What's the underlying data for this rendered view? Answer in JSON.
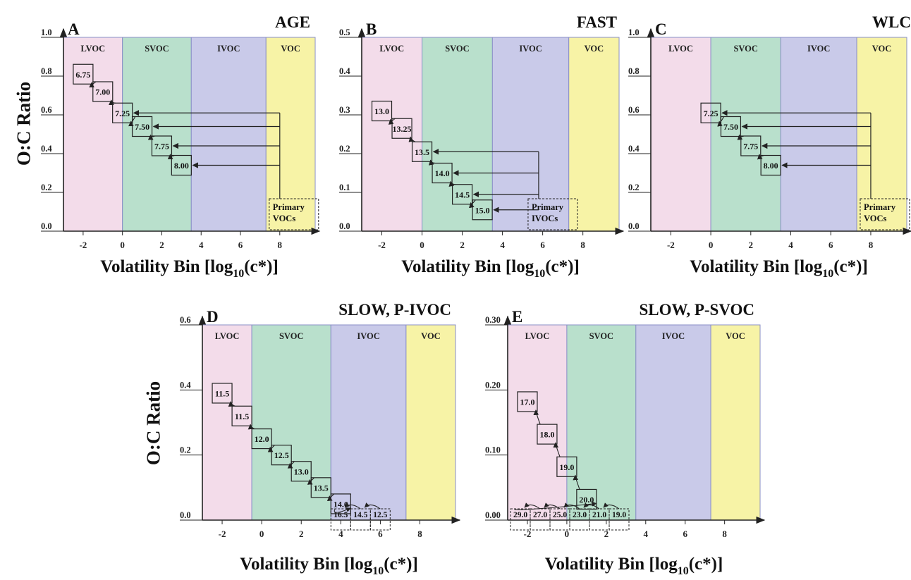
{
  "figure": {
    "y_axis_label": "O:C Ratio",
    "x_axis_label": "Volatility Bin [log10(c*)]",
    "x_axis_label_main": "Volatility Bin [log",
    "x_axis_label_sub": "10",
    "x_axis_label_tail": "(c*)]"
  },
  "chart_data": [
    {
      "type": "scatter",
      "panel": "A",
      "title": "AGE",
      "xlim": [
        -3,
        9.8
      ],
      "ylim": [
        0,
        1.0
      ],
      "xticks": [
        -2,
        0,
        2,
        4,
        6,
        8
      ],
      "yticks": [
        {
          "v": 0.0,
          "t": "0.0"
        },
        {
          "v": 0.2,
          "t": "0.2"
        },
        {
          "v": 0.4,
          "t": "0.4"
        },
        {
          "v": 0.6,
          "t": "0.6"
        },
        {
          "v": 0.8,
          "t": "0.8"
        },
        {
          "v": 1.0,
          "t": "1.0"
        }
      ],
      "regions": [
        {
          "name": "LVOC",
          "from": -3,
          "to": 0,
          "color": "#f3dcea"
        },
        {
          "name": "SVOC",
          "from": 0,
          "to": 3.5,
          "color": "#b9e0cc"
        },
        {
          "name": "IVOC",
          "from": 3.5,
          "to": 7.3,
          "color": "#c9cae9"
        },
        {
          "name": "VOC",
          "from": 7.3,
          "to": 9.8,
          "color": "#f7f3a6"
        }
      ],
      "points": [
        {
          "x": -2.0,
          "y": 0.81,
          "label": "6.75"
        },
        {
          "x": -1.0,
          "y": 0.72,
          "label": "7.00"
        },
        {
          "x": 0.0,
          "y": 0.61,
          "label": "7.25"
        },
        {
          "x": 1.0,
          "y": 0.54,
          "label": "7.50"
        },
        {
          "x": 2.0,
          "y": 0.44,
          "label": "7.75"
        },
        {
          "x": 3.0,
          "y": 0.34,
          "label": "8.00"
        }
      ],
      "source": {
        "x": 8.0,
        "y": 0.075,
        "lines": [
          "Primary",
          "VOCs"
        ]
      },
      "arrow_targets": [
        "7.25",
        "7.50",
        "7.75",
        "8.00"
      ]
    },
    {
      "type": "scatter",
      "panel": "B",
      "title": "FAST",
      "xlim": [
        -3,
        9.8
      ],
      "ylim": [
        0,
        0.5
      ],
      "xticks": [
        -2,
        0,
        2,
        4,
        6,
        8
      ],
      "yticks": [
        {
          "v": 0.0,
          "t": "0.0"
        },
        {
          "v": 0.1,
          "t": "0.1"
        },
        {
          "v": 0.2,
          "t": "0.2"
        },
        {
          "v": 0.3,
          "t": "0.3"
        },
        {
          "v": 0.4,
          "t": "0.4"
        },
        {
          "v": 0.5,
          "t": "0.5"
        }
      ],
      "regions": [
        {
          "name": "LVOC",
          "from": -3,
          "to": 0,
          "color": "#f3dcea"
        },
        {
          "name": "SVOC",
          "from": 0,
          "to": 3.5,
          "color": "#b9e0cc"
        },
        {
          "name": "IVOC",
          "from": 3.5,
          "to": 7.3,
          "color": "#c9cae9"
        },
        {
          "name": "VOC",
          "from": 7.3,
          "to": 9.8,
          "color": "#f7f3a6"
        }
      ],
      "points": [
        {
          "x": -2.0,
          "y": 0.31,
          "label": "13.0"
        },
        {
          "x": -1.0,
          "y": 0.265,
          "label": "13.25"
        },
        {
          "x": 0.0,
          "y": 0.205,
          "label": "13.5"
        },
        {
          "x": 1.0,
          "y": 0.15,
          "label": "14.0"
        },
        {
          "x": 2.0,
          "y": 0.095,
          "label": "14.5"
        },
        {
          "x": 3.0,
          "y": 0.055,
          "label": "15.0"
        }
      ],
      "source": {
        "x": 5.8,
        "y": 0.04,
        "lines": [
          "Primary",
          "IVOCs"
        ]
      },
      "arrow_targets": [
        "13.5",
        "14.0",
        "14.5",
        "15.0"
      ]
    },
    {
      "type": "scatter",
      "panel": "C",
      "title": "WLC",
      "xlim": [
        -3,
        9.8
      ],
      "ylim": [
        0,
        1.0
      ],
      "xticks": [
        -2,
        0,
        2,
        4,
        6,
        8
      ],
      "yticks": [
        {
          "v": 0.0,
          "t": "0.0"
        },
        {
          "v": 0.2,
          "t": "0.2"
        },
        {
          "v": 0.4,
          "t": "0.4"
        },
        {
          "v": 0.6,
          "t": "0.6"
        },
        {
          "v": 0.8,
          "t": "0.8"
        },
        {
          "v": 1.0,
          "t": "1.0"
        }
      ],
      "regions": [
        {
          "name": "LVOC",
          "from": -3,
          "to": 0,
          "color": "#f3dcea"
        },
        {
          "name": "SVOC",
          "from": 0,
          "to": 3.5,
          "color": "#b9e0cc"
        },
        {
          "name": "IVOC",
          "from": 3.5,
          "to": 7.3,
          "color": "#c9cae9"
        },
        {
          "name": "VOC",
          "from": 7.3,
          "to": 9.8,
          "color": "#f7f3a6"
        }
      ],
      "points": [
        {
          "x": 0.0,
          "y": 0.61,
          "label": "7.25"
        },
        {
          "x": 1.0,
          "y": 0.54,
          "label": "7.50"
        },
        {
          "x": 2.0,
          "y": 0.44,
          "label": "7.75"
        },
        {
          "x": 3.0,
          "y": 0.34,
          "label": "8.00"
        }
      ],
      "source": {
        "x": 8.0,
        "y": 0.075,
        "lines": [
          "Primary",
          "VOCs"
        ]
      },
      "arrow_targets": [
        "7.25",
        "7.50",
        "7.75",
        "8.00"
      ]
    },
    {
      "type": "scatter",
      "panel": "D",
      "title": "SLOW, P-IVOC",
      "xlim": [
        -3,
        9.8
      ],
      "ylim": [
        0,
        0.6
      ],
      "xticks": [
        -2,
        0,
        2,
        4,
        6,
        8
      ],
      "yticks": [
        {
          "v": 0.0,
          "t": "0.0"
        },
        {
          "v": 0.2,
          "t": "0.2"
        },
        {
          "v": 0.4,
          "t": "0.4"
        },
        {
          "v": 0.6,
          "t": "0.6"
        }
      ],
      "regions": [
        {
          "name": "LVOC",
          "from": -3,
          "to": -0.5,
          "color": "#f3dcea"
        },
        {
          "name": "SVOC",
          "from": -0.5,
          "to": 3.5,
          "color": "#b9e0cc"
        },
        {
          "name": "IVOC",
          "from": 3.5,
          "to": 7.3,
          "color": "#c9cae9"
        },
        {
          "name": "VOC",
          "from": 7.3,
          "to": 9.8,
          "color": "#f7f3a6"
        }
      ],
      "points": [
        {
          "x": -2.0,
          "y": 0.39,
          "label": "11.5"
        },
        {
          "x": -1.0,
          "y": 0.32,
          "label": "11.5"
        },
        {
          "x": 0.0,
          "y": 0.25,
          "label": "12.0"
        },
        {
          "x": 1.0,
          "y": 0.2,
          "label": "12.5"
        },
        {
          "x": 2.0,
          "y": 0.15,
          "label": "13.0"
        },
        {
          "x": 3.0,
          "y": 0.1,
          "label": "13.5"
        },
        {
          "x": 4.0,
          "y": 0.05,
          "label": "14.0"
        }
      ],
      "primary_row": [
        "16.5",
        "14.5",
        "12.5"
      ]
    },
    {
      "type": "scatter",
      "panel": "E",
      "title": "SLOW, P-SVOC",
      "xlim": [
        -3,
        9.8
      ],
      "ylim": [
        0,
        0.3
      ],
      "xticks": [
        -2,
        0,
        2,
        4,
        6,
        8
      ],
      "yticks": [
        {
          "v": 0.0,
          "t": "0.00"
        },
        {
          "v": 0.1,
          "t": "0.10"
        },
        {
          "v": 0.2,
          "t": "0.20"
        },
        {
          "v": 0.3,
          "t": "0.30"
        }
      ],
      "regions": [
        {
          "name": "LVOC",
          "from": -3,
          "to": 0,
          "color": "#f3dcea"
        },
        {
          "name": "SVOC",
          "from": 0,
          "to": 3.5,
          "color": "#b9e0cc"
        },
        {
          "name": "IVOC",
          "from": 3.5,
          "to": 7.3,
          "color": "#c9cae9"
        },
        {
          "name": "VOC",
          "from": 7.3,
          "to": 9.8,
          "color": "#f7f3a6"
        }
      ],
      "points": [
        {
          "x": -2.0,
          "y": 0.182,
          "label": "17.0"
        },
        {
          "x": -1.0,
          "y": 0.132,
          "label": "18.0"
        },
        {
          "x": 0.0,
          "y": 0.082,
          "label": "19.0"
        },
        {
          "x": 1.0,
          "y": 0.032,
          "label": "20.0"
        }
      ],
      "primary_row": [
        "29.0",
        "27.0",
        "25.0",
        "23.0",
        "21.0",
        "19.0"
      ]
    }
  ]
}
